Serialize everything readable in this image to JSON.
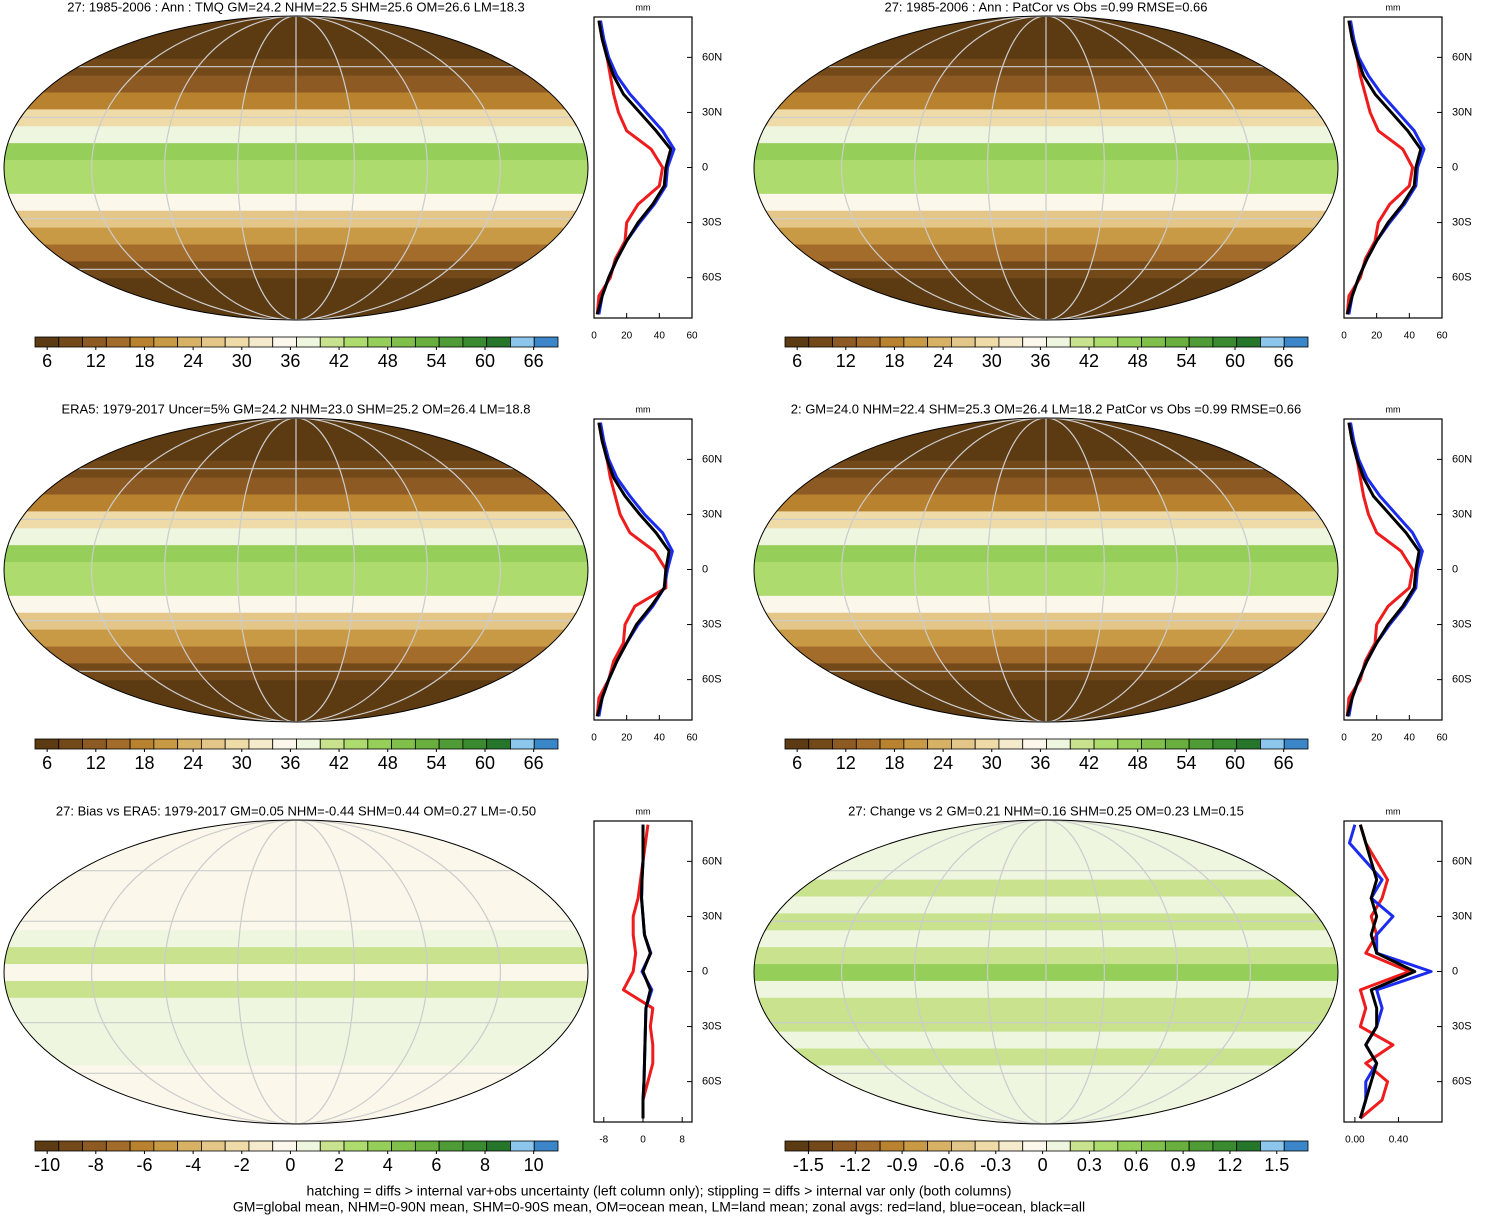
{
  "chart_data": [
    {
      "type": "line",
      "title": "27: 1985-2006 : Ann : TMQ GM=24.2 NHM=22.5 SHM=25.6 OM=26.6 LM=18.3",
      "unit": "mm",
      "colorbar": {
        "colors": [
          "#5c3a12",
          "#74491a",
          "#8c5a22",
          "#a36c2a",
          "#b8822e",
          "#c99a45",
          "#d8b264",
          "#e4c788",
          "#eedba8",
          "#f5eacb",
          "#fbf7ea",
          "#eef6e0",
          "#c8e28e",
          "#addb6e",
          "#96ce5a",
          "#7fbf4a",
          "#68af3e",
          "#4f9c36",
          "#3a8a30",
          "#25752a",
          "#8cc6ec",
          "#3a86c8"
        ],
        "clim": [
          4.5,
          69
        ],
        "ticks": [
          6,
          12,
          18,
          24,
          30,
          36,
          42,
          48,
          54,
          60,
          66
        ]
      },
      "y": [
        -80,
        -70,
        -60,
        -50,
        -40,
        -30,
        -20,
        -10,
        0,
        10,
        20,
        30,
        40,
        50,
        60,
        70,
        80
      ],
      "xlim": [
        0,
        60
      ],
      "xticks": [
        0,
        20,
        40,
        60
      ],
      "ylim": [
        -82,
        82
      ],
      "yticks": [
        {
          "value": 60,
          "label": "60N"
        },
        {
          "value": 30,
          "label": "30N"
        },
        0,
        {
          "value": -30,
          "label": "30S"
        },
        {
          "value": -60,
          "label": "60S"
        }
      ],
      "series": [
        {
          "color": "#ee1c1c",
          "values": [
            2,
            3,
            10,
            13,
            19,
            20,
            27,
            40,
            42,
            35,
            20,
            15,
            12,
            10,
            8,
            5,
            3
          ]
        },
        {
          "color": "#1c2cee",
          "values": [
            3,
            5,
            9,
            14,
            20,
            28,
            37,
            44,
            45,
            49,
            42,
            32,
            22,
            14,
            9,
            6,
            4
          ]
        },
        {
          "color": "#000000",
          "values": [
            2,
            5,
            9,
            14,
            20,
            27,
            36,
            43,
            44,
            47,
            38,
            28,
            18,
            12,
            8,
            5,
            3
          ]
        }
      ]
    },
    {
      "type": "line",
      "title": "27: 1985-2006 : Ann : PatCor vs Obs =0.99 RMSE=0.66",
      "unit": "mm",
      "colorbar": {
        "colors": [
          "#5c3a12",
          "#74491a",
          "#8c5a22",
          "#a36c2a",
          "#b8822e",
          "#c99a45",
          "#d8b264",
          "#e4c788",
          "#eedba8",
          "#f5eacb",
          "#fbf7ea",
          "#eef6e0",
          "#c8e28e",
          "#addb6e",
          "#96ce5a",
          "#7fbf4a",
          "#68af3e",
          "#4f9c36",
          "#3a8a30",
          "#25752a",
          "#8cc6ec",
          "#3a86c8"
        ],
        "clim": [
          4.5,
          69
        ],
        "ticks": [
          6,
          12,
          18,
          24,
          30,
          36,
          42,
          48,
          54,
          60,
          66
        ]
      },
      "y": [
        -80,
        -70,
        -60,
        -50,
        -40,
        -30,
        -20,
        -10,
        0,
        10,
        20,
        30,
        40,
        50,
        60,
        70,
        80
      ],
      "xlim": [
        0,
        60
      ],
      "xticks": [
        0,
        20,
        40,
        60
      ],
      "ylim": [
        -82,
        82
      ],
      "yticks": [
        {
          "value": 60,
          "label": "60N"
        },
        {
          "value": 30,
          "label": "30N"
        },
        0,
        {
          "value": -30,
          "label": "30S"
        },
        {
          "value": -60,
          "label": "60S"
        }
      ],
      "series": [
        {
          "color": "#ee1c1c",
          "values": [
            2,
            3,
            10,
            13,
            19,
            21,
            28,
            40,
            42,
            36,
            21,
            16,
            13,
            10,
            8,
            5,
            3
          ]
        },
        {
          "color": "#1c2cee",
          "values": [
            3,
            5,
            9,
            14,
            20,
            28,
            37,
            44,
            45,
            49,
            43,
            33,
            23,
            15,
            9,
            6,
            4
          ]
        },
        {
          "color": "#000000",
          "values": [
            2,
            5,
            9,
            14,
            20,
            27,
            36,
            43,
            44,
            47,
            39,
            29,
            19,
            12,
            8,
            5,
            3
          ]
        }
      ]
    },
    {
      "type": "line",
      "title": "ERA5: 1979-2017 Uncer=5% GM=24.2 NHM=23.0 SHM=25.2 OM=26.4 LM=18.8",
      "unit": "mm",
      "colorbar": {
        "colors": [
          "#5c3a12",
          "#74491a",
          "#8c5a22",
          "#a36c2a",
          "#b8822e",
          "#c99a45",
          "#d8b264",
          "#e4c788",
          "#eedba8",
          "#f5eacb",
          "#fbf7ea",
          "#eef6e0",
          "#c8e28e",
          "#addb6e",
          "#96ce5a",
          "#7fbf4a",
          "#68af3e",
          "#4f9c36",
          "#3a8a30",
          "#25752a",
          "#8cc6ec",
          "#3a86c8"
        ],
        "clim": [
          4.5,
          69
        ],
        "ticks": [
          6,
          12,
          18,
          24,
          30,
          36,
          42,
          48,
          54,
          60,
          66
        ]
      },
      "y": [
        -80,
        -70,
        -60,
        -50,
        -40,
        -30,
        -20,
        -10,
        0,
        10,
        20,
        30,
        40,
        50,
        60,
        70,
        80
      ],
      "xlim": [
        0,
        60
      ],
      "xticks": [
        0,
        20,
        40,
        60
      ],
      "ylim": [
        -82,
        82
      ],
      "yticks": [
        {
          "value": 60,
          "label": "60N"
        },
        {
          "value": 30,
          "label": "30N"
        },
        0,
        {
          "value": -30,
          "label": "30S"
        },
        {
          "value": -60,
          "label": "60S"
        }
      ],
      "series": [
        {
          "color": "#ee1c1c",
          "values": [
            2,
            3,
            9,
            12,
            18,
            19,
            25,
            44,
            44,
            37,
            22,
            16,
            13,
            10,
            8,
            5,
            3
          ]
        },
        {
          "color": "#1c2cee",
          "values": [
            3,
            5,
            9,
            14,
            20,
            27,
            36,
            43,
            45,
            48,
            42,
            31,
            22,
            14,
            9,
            6,
            4
          ]
        },
        {
          "color": "#000000",
          "values": [
            2,
            5,
            9,
            14,
            20,
            26,
            35,
            43,
            44,
            46,
            38,
            28,
            19,
            12,
            8,
            5,
            3
          ]
        }
      ]
    },
    {
      "type": "line",
      "title": "2: GM=24.0 NHM=22.4 SHM=25.3 OM=26.4 LM=18.2 PatCor vs Obs =0.99 RMSE=0.66",
      "unit": "mm",
      "colorbar": {
        "colors": [
          "#5c3a12",
          "#74491a",
          "#8c5a22",
          "#a36c2a",
          "#b8822e",
          "#c99a45",
          "#d8b264",
          "#e4c788",
          "#eedba8",
          "#f5eacb",
          "#fbf7ea",
          "#eef6e0",
          "#c8e28e",
          "#addb6e",
          "#96ce5a",
          "#7fbf4a",
          "#68af3e",
          "#4f9c36",
          "#3a8a30",
          "#25752a",
          "#8cc6ec",
          "#3a86c8"
        ],
        "clim": [
          4.5,
          69
        ],
        "ticks": [
          6,
          12,
          18,
          24,
          30,
          36,
          42,
          48,
          54,
          60,
          66
        ]
      },
      "y": [
        -80,
        -70,
        -60,
        -50,
        -40,
        -30,
        -20,
        -10,
        0,
        10,
        20,
        30,
        40,
        50,
        60,
        70,
        80
      ],
      "xlim": [
        0,
        60
      ],
      "xticks": [
        0,
        20,
        40,
        60
      ],
      "ylim": [
        -82,
        82
      ],
      "yticks": [
        {
          "value": 60,
          "label": "60N"
        },
        {
          "value": 30,
          "label": "30N"
        },
        0,
        {
          "value": -30,
          "label": "30S"
        },
        {
          "value": -60,
          "label": "60S"
        }
      ],
      "series": [
        {
          "color": "#ee1c1c",
          "values": [
            2,
            3,
            10,
            13,
            19,
            20,
            27,
            40,
            42,
            35,
            20,
            15,
            12,
            10,
            8,
            5,
            3
          ]
        },
        {
          "color": "#1c2cee",
          "values": [
            3,
            5,
            9,
            14,
            20,
            28,
            37,
            44,
            45,
            48,
            42,
            32,
            22,
            14,
            9,
            6,
            4
          ]
        },
        {
          "color": "#000000",
          "values": [
            2,
            5,
            9,
            14,
            20,
            27,
            36,
            43,
            44,
            46,
            38,
            28,
            18,
            12,
            8,
            5,
            3
          ]
        }
      ]
    },
    {
      "type": "line",
      "title": "27: Bias vs ERA5: 1979-2017 GM=0.05 NHM=-0.44 SHM=0.44 OM=0.27 LM=-0.50",
      "unit": "mm",
      "colorbar": {
        "colors": [
          "#5c3a12",
          "#74491a",
          "#8c5a22",
          "#a36c2a",
          "#b8822e",
          "#c99a45",
          "#d8b264",
          "#e4c788",
          "#eedba8",
          "#f5eacb",
          "#fbf7ea",
          "#eef6e0",
          "#c8e28e",
          "#addb6e",
          "#96ce5a",
          "#7fbf4a",
          "#68af3e",
          "#4f9c36",
          "#3a8a30",
          "#25752a",
          "#8cc6ec",
          "#3a86c8"
        ],
        "clim": [
          -10.5,
          11
        ],
        "ticks": [
          -10,
          -8,
          -6,
          -4,
          -2,
          0,
          2,
          4,
          6,
          8,
          10
        ]
      },
      "y": [
        -80,
        -70,
        -60,
        -50,
        -40,
        -30,
        -20,
        -10,
        0,
        10,
        20,
        30,
        40,
        50,
        60,
        70,
        80
      ],
      "xlim": [
        -10,
        10
      ],
      "xticks": [
        -8,
        0,
        8
      ],
      "ylim": [
        -82,
        82
      ],
      "yticks": [
        {
          "value": 60,
          "label": "60N"
        },
        {
          "value": 30,
          "label": "30N"
        },
        0,
        {
          "value": -30,
          "label": "30S"
        },
        {
          "value": -60,
          "label": "60S"
        }
      ],
      "series": [
        {
          "color": "#ee1c1c",
          "values": [
            0,
            0,
            1,
            2,
            2,
            1.5,
            2,
            -4,
            -2,
            -1.5,
            -2,
            -2,
            -1,
            -0.5,
            0,
            0.5,
            1
          ]
        },
        {
          "color": "#1c2cee",
          "values": [
            0,
            0,
            0.2,
            0.3,
            0.4,
            0.5,
            0.6,
            1.8,
            -0.2,
            1.6,
            0.3,
            0,
            -0.3,
            -0.2,
            0,
            0,
            0
          ]
        },
        {
          "color": "#000000",
          "values": [
            0,
            0,
            0.2,
            0.3,
            0.4,
            0.5,
            0.6,
            1.5,
            0,
            1.5,
            0.3,
            0,
            -0.3,
            -0.2,
            0,
            0,
            0
          ]
        }
      ]
    },
    {
      "type": "line",
      "title": "27: Change vs 2 GM=0.21 NHM=0.16 SHM=0.25 OM=0.23 LM=0.15",
      "unit": "mm",
      "colorbar": {
        "colors": [
          "#5c3a12",
          "#74491a",
          "#8c5a22",
          "#a36c2a",
          "#b8822e",
          "#c99a45",
          "#d8b264",
          "#e4c788",
          "#eedba8",
          "#f5eacb",
          "#fbf7ea",
          "#eef6e0",
          "#c8e28e",
          "#addb6e",
          "#96ce5a",
          "#7fbf4a",
          "#68af3e",
          "#4f9c36",
          "#3a8a30",
          "#25752a",
          "#8cc6ec",
          "#3a86c8"
        ],
        "clim": [
          -1.65,
          1.7
        ],
        "ticks": [
          -1.5,
          -1.2,
          -0.9,
          -0.6,
          -0.3,
          0,
          0.3,
          0.6,
          0.9,
          1.2,
          1.5
        ]
      },
      "y": [
        -80,
        -70,
        -60,
        -50,
        -40,
        -30,
        -20,
        -10,
        0,
        10,
        20,
        30,
        40,
        50,
        60,
        70,
        80
      ],
      "xlim": [
        -0.1,
        0.8
      ],
      "xticks": [
        {
          "value": 0,
          "label": "0.00"
        },
        {
          "value": 0.4,
          "label": "0.40"
        }
      ],
      "ylim": [
        -82,
        82
      ],
      "yticks": [
        {
          "value": 60,
          "label": "60N"
        },
        {
          "value": 30,
          "label": "30N"
        },
        0,
        {
          "value": -30,
          "label": "30S"
        },
        {
          "value": -60,
          "label": "60S"
        }
      ],
      "series": [
        {
          "color": "#ee1c1c",
          "values": [
            0.05,
            0.25,
            0.3,
            0.1,
            0.35,
            0.05,
            0.1,
            0.05,
            0.5,
            0.1,
            0.2,
            0.15,
            0.25,
            0.3,
            0.2,
            0.1,
            0.05
          ]
        },
        {
          "color": "#1c2cee",
          "values": [
            0.05,
            0.1,
            0.1,
            0.2,
            0.1,
            0.2,
            0.25,
            0.2,
            0.7,
            0.2,
            0.2,
            0.35,
            0.15,
            0.25,
            0.1,
            -0.05,
            0
          ]
        },
        {
          "color": "#000000",
          "values": [
            0.05,
            0.1,
            0.15,
            0.2,
            0.1,
            0.2,
            0.2,
            0.15,
            0.55,
            0.2,
            0.15,
            0.2,
            0.15,
            0.2,
            0.15,
            0.1,
            0.05
          ]
        }
      ]
    }
  ],
  "footer": [
    "hatching = diffs > internal var+obs uncertainty (left column only); stippling = diffs > internal var only (both columns)",
    "GM=global mean, NHM=0-90N mean, SHM=0-90S mean, OM=ocean mean, LM=land mean; zonal avgs: red=land, blue=ocean, black=all"
  ]
}
